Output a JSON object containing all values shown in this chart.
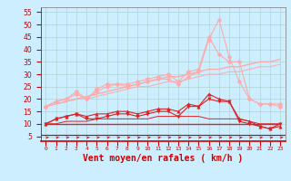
{
  "x": [
    0,
    1,
    2,
    3,
    4,
    5,
    6,
    7,
    8,
    9,
    10,
    11,
    12,
    13,
    14,
    15,
    16,
    17,
    18,
    19,
    20,
    21,
    22,
    23
  ],
  "series": [
    {
      "color": "#dd2222",
      "marker": "v",
      "markersize": 2.5,
      "linewidth": 0.8,
      "values": [
        10,
        12,
        13,
        14,
        12,
        12,
        13,
        14,
        14,
        13,
        14,
        15,
        15,
        13,
        17,
        17,
        20,
        19,
        19,
        11,
        10,
        9,
        8,
        10
      ]
    },
    {
      "color": "#dd2222",
      "marker": "^",
      "markersize": 2.5,
      "linewidth": 0.8,
      "values": [
        10,
        12,
        13,
        14,
        13,
        14,
        14,
        15,
        15,
        14,
        15,
        16,
        16,
        15,
        18,
        17,
        22,
        20,
        19,
        12,
        11,
        9,
        8,
        9
      ]
    },
    {
      "color": "#dd2222",
      "marker": null,
      "markersize": 0,
      "linewidth": 1.0,
      "values": [
        10,
        10,
        10,
        10,
        10,
        10,
        10,
        10,
        10,
        10,
        10,
        10,
        10,
        10,
        10,
        10,
        10,
        10,
        10,
        10,
        10,
        10,
        10,
        10
      ]
    },
    {
      "color": "#dd2222",
      "marker": null,
      "markersize": 0,
      "linewidth": 0.7,
      "values": [
        10,
        10,
        11,
        11,
        11,
        12,
        12,
        12,
        12,
        12,
        12,
        13,
        13,
        13,
        13,
        13,
        12,
        12,
        12,
        12,
        11,
        10,
        10,
        10
      ]
    },
    {
      "color": "#ffaaaa",
      "marker": "D",
      "markersize": 2.5,
      "linewidth": 0.8,
      "values": [
        17,
        19,
        20,
        22,
        20,
        23,
        25,
        26,
        25,
        26,
        27,
        28,
        28,
        26,
        29,
        31,
        44,
        52,
        37,
        27,
        20,
        18,
        18,
        17
      ]
    },
    {
      "color": "#ffaaaa",
      "marker": "D",
      "markersize": 2.5,
      "linewidth": 0.8,
      "values": [
        17,
        19,
        20,
        23,
        20,
        24,
        26,
        26,
        26,
        27,
        28,
        29,
        30,
        27,
        31,
        32,
        45,
        38,
        35,
        35,
        20,
        18,
        18,
        18
      ]
    },
    {
      "color": "#ffaaaa",
      "marker": null,
      "markersize": 0,
      "linewidth": 1.0,
      "values": [
        17,
        18,
        19,
        20,
        21,
        22,
        23,
        24,
        25,
        26,
        27,
        28,
        29,
        29,
        30,
        31,
        32,
        32,
        33,
        33,
        34,
        35,
        35,
        36
      ]
    },
    {
      "color": "#ffaaaa",
      "marker": null,
      "markersize": 0,
      "linewidth": 0.7,
      "values": [
        17,
        18,
        19,
        20,
        20,
        21,
        22,
        23,
        24,
        25,
        25,
        26,
        27,
        27,
        28,
        29,
        30,
        30,
        31,
        31,
        32,
        33,
        33,
        34
      ]
    }
  ],
  "xlabel": "Vent moyen/en rafales ( km/h )",
  "xlabel_color": "#cc0000",
  "xlabel_fontsize": 7,
  "xtick_labels": [
    "0",
    "1",
    "2",
    "3",
    "4",
    "5",
    "6",
    "7",
    "8",
    "9",
    "10",
    "11",
    "12",
    "13",
    "14",
    "15",
    "16",
    "17",
    "18",
    "19",
    "20",
    "21",
    "22",
    "23"
  ],
  "yticks": [
    5,
    10,
    15,
    20,
    25,
    30,
    35,
    40,
    45,
    50,
    55
  ],
  "ylim": [
    3,
    57
  ],
  "xlim": [
    -0.5,
    23.5
  ],
  "bg_color": "#cceeff",
  "grid_color": "#aacccc",
  "tick_color": "#cc0000",
  "arrow_color": "#cc0000",
  "spine_color": "#888888"
}
